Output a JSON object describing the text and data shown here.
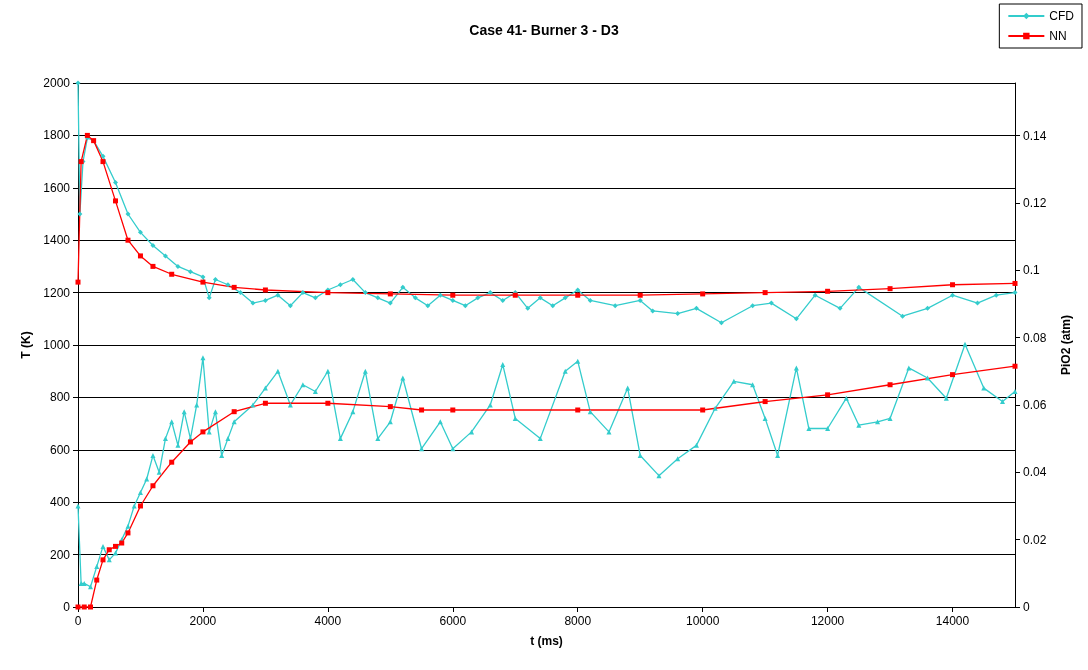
{
  "chart_data": {
    "type": "line",
    "title": "Case 41- Burner 3 - D3",
    "xlabel": "t (ms)",
    "ylabel": "T (K)",
    "y2label": "PiO2 (atm)",
    "xlim": [
      0,
      15000
    ],
    "xticks": [
      0,
      2000,
      4000,
      6000,
      8000,
      10000,
      12000,
      14000
    ],
    "ylim": [
      0,
      2000
    ],
    "yticks": [
      0,
      200,
      400,
      600,
      800,
      1000,
      1200,
      1400,
      1600,
      1800,
      2000
    ],
    "y2lim": [
      0,
      0.1556
    ],
    "y2ticks": [
      0,
      0.02,
      0.04,
      0.06,
      0.08,
      0.1,
      0.12,
      0.14
    ],
    "grid": "y",
    "legend": "top right",
    "series": [
      {
        "name": "CFD",
        "color": "#33cccc",
        "marker": "diamond",
        "x": [
          0,
          30,
          80,
          150,
          250,
          400,
          600,
          800,
          1000,
          1200,
          1400,
          1600,
          1800,
          2000,
          2100,
          2200,
          2400,
          2600,
          2800,
          3000,
          3200,
          3400,
          3600,
          3800,
          4000,
          4200,
          4400,
          4600,
          4800,
          5000,
          5200,
          5400,
          5600,
          5800,
          6000,
          6200,
          6400,
          6600,
          6800,
          7000,
          7200,
          7400,
          7600,
          7800,
          8000,
          8200,
          8600,
          9000,
          9200,
          9600,
          9900,
          10300,
          10800,
          11100,
          11500,
          11800,
          12200,
          12500,
          13200,
          13600,
          14000,
          14400,
          14700,
          15000
        ],
        "values": [
          2000,
          1500,
          1700,
          1790,
          1780,
          1720,
          1620,
          1500,
          1430,
          1380,
          1340,
          1300,
          1280,
          1260,
          1180,
          1250,
          1230,
          1200,
          1160,
          1170,
          1190,
          1150,
          1200,
          1180,
          1210,
          1230,
          1250,
          1200,
          1180,
          1160,
          1220,
          1180,
          1150,
          1190,
          1170,
          1150,
          1180,
          1200,
          1170,
          1200,
          1140,
          1180,
          1150,
          1180,
          1210,
          1170,
          1150,
          1170,
          1130,
          1120,
          1140,
          1085,
          1150,
          1160,
          1100,
          1190,
          1140,
          1220,
          1110,
          1140,
          1190,
          1160,
          1190,
          1200
        ]
      },
      {
        "name": "NN",
        "color": "#ff0000",
        "marker": "square",
        "x": [
          0,
          50,
          150,
          250,
          400,
          600,
          800,
          1000,
          1200,
          1500,
          2000,
          2500,
          3000,
          4000,
          5000,
          6000,
          7000,
          8000,
          9000,
          10000,
          11000,
          12000,
          13000,
          14000,
          15000
        ],
        "values": [
          1240,
          1700,
          1800,
          1780,
          1700,
          1550,
          1400,
          1340,
          1300,
          1270,
          1240,
          1220,
          1210,
          1200,
          1195,
          1190,
          1190,
          1190,
          1190,
          1195,
          1200,
          1205,
          1215,
          1230,
          1235
        ]
      },
      {
        "color": "#33cccc",
        "marker": "triangle",
        "axis": "y2",
        "x": [
          0,
          50,
          100,
          200,
          300,
          400,
          500,
          600,
          700,
          800,
          900,
          1000,
          1100,
          1200,
          1300,
          1400,
          1500,
          1600,
          1700,
          1800,
          1900,
          2000,
          2100,
          2200,
          2300,
          2400,
          2500,
          2800,
          3000,
          3200,
          3400,
          3600,
          3800,
          4000,
          4200,
          4400,
          4600,
          4800,
          5000,
          5200,
          5500,
          5800,
          6000,
          6300,
          6600,
          6800,
          7000,
          7400,
          7800,
          8000,
          8200,
          8500,
          8800,
          9000,
          9300,
          9600,
          9900,
          10200,
          10500,
          10800,
          11000,
          11200,
          11500,
          11700,
          12000,
          12300,
          12500,
          12800,
          13000,
          13300,
          13600,
          13900,
          14200,
          14500,
          14800,
          15000
        ],
        "values": [
          0.03,
          0.007,
          0.007,
          0.006,
          0.012,
          0.018,
          0.014,
          0.016,
          0.02,
          0.024,
          0.03,
          0.034,
          0.038,
          0.045,
          0.04,
          0.05,
          0.055,
          0.048,
          0.058,
          0.05,
          0.06,
          0.074,
          0.052,
          0.058,
          0.045,
          0.05,
          0.055,
          0.06,
          0.065,
          0.07,
          0.06,
          0.066,
          0.064,
          0.07,
          0.05,
          0.058,
          0.07,
          0.05,
          0.055,
          0.068,
          0.047,
          0.055,
          0.047,
          0.052,
          0.06,
          0.072,
          0.056,
          0.05,
          0.07,
          0.073,
          0.058,
          0.052,
          0.065,
          0.045,
          0.039,
          0.044,
          0.048,
          0.059,
          0.067,
          0.066,
          0.056,
          0.045,
          0.071,
          0.053,
          0.053,
          0.062,
          0.054,
          0.055,
          0.056,
          0.071,
          0.068,
          0.062,
          0.078,
          0.065,
          0.061,
          0.064
        ]
      },
      {
        "color": "#ff0000",
        "marker": "square",
        "axis": "y2",
        "x": [
          0,
          100,
          200,
          300,
          400,
          500,
          600,
          700,
          800,
          1000,
          1200,
          1500,
          1800,
          2000,
          2500,
          3000,
          4000,
          5000,
          5500,
          6000,
          8000,
          10000,
          11000,
          12000,
          13000,
          14000,
          15000
        ],
        "values": [
          0,
          0,
          0,
          0.008,
          0.014,
          0.017,
          0.018,
          0.019,
          0.022,
          0.03,
          0.036,
          0.043,
          0.049,
          0.052,
          0.058,
          0.0605,
          0.0605,
          0.0595,
          0.0585,
          0.0585,
          0.0585,
          0.0585,
          0.061,
          0.063,
          0.066,
          0.069,
          0.0715
        ]
      }
    ]
  }
}
